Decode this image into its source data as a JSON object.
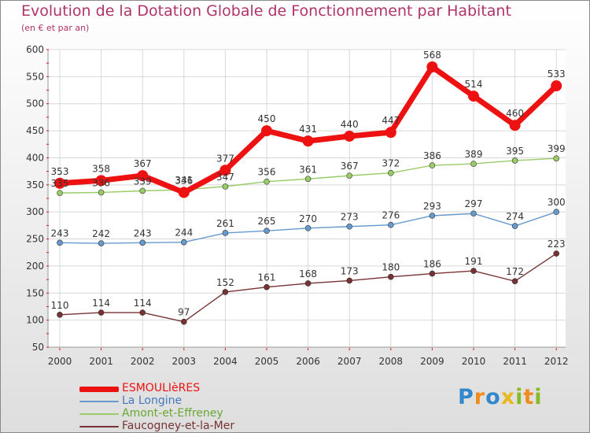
{
  "chart_data": {
    "type": "line",
    "title": "Evolution de la Dotation Globale de Fonctionnement par Habitant",
    "subtitle": "(en € et par an)",
    "xlabel": "",
    "ylabel": "",
    "categories": [
      "2000",
      "2001",
      "2002",
      "2003",
      "2004",
      "2005",
      "2006",
      "2007",
      "2008",
      "2009",
      "2010",
      "2011",
      "2012"
    ],
    "yticks": [
      50,
      100,
      150,
      200,
      250,
      300,
      350,
      400,
      450,
      500,
      550,
      600
    ],
    "ylim": [
      50,
      600
    ],
    "grid": true,
    "legend_position": "bottom-left",
    "series": [
      {
        "name": "ESMOULIèRES",
        "color": "#ee1111",
        "values": [
          353,
          358,
          367,
          336,
          377,
          450,
          431,
          440,
          447,
          568,
          514,
          460,
          533
        ]
      },
      {
        "name": "La Longine",
        "color": "#6699cc",
        "values": [
          243,
          242,
          243,
          244,
          261,
          265,
          270,
          273,
          276,
          293,
          297,
          274,
          300
        ]
      },
      {
        "name": "Amont-et-Effreney",
        "color": "#99cc66",
        "values": [
          335,
          336,
          339,
          341,
          347,
          356,
          361,
          367,
          372,
          386,
          389,
          395,
          399
        ]
      },
      {
        "name": "Faucogney-et-la-Mer",
        "color": "#773333",
        "values": [
          110,
          114,
          114,
          97,
          152,
          161,
          168,
          173,
          180,
          186,
          191,
          172,
          223
        ]
      }
    ]
  },
  "logo": {
    "letters": [
      "P",
      "r",
      "o",
      "x",
      "i",
      "t",
      "i"
    ],
    "colors": [
      "#3388cc",
      "#f08c1e",
      "#3388cc",
      "#e8b81e",
      "#88bb22",
      "#f08c1e",
      "#88bb22"
    ]
  }
}
